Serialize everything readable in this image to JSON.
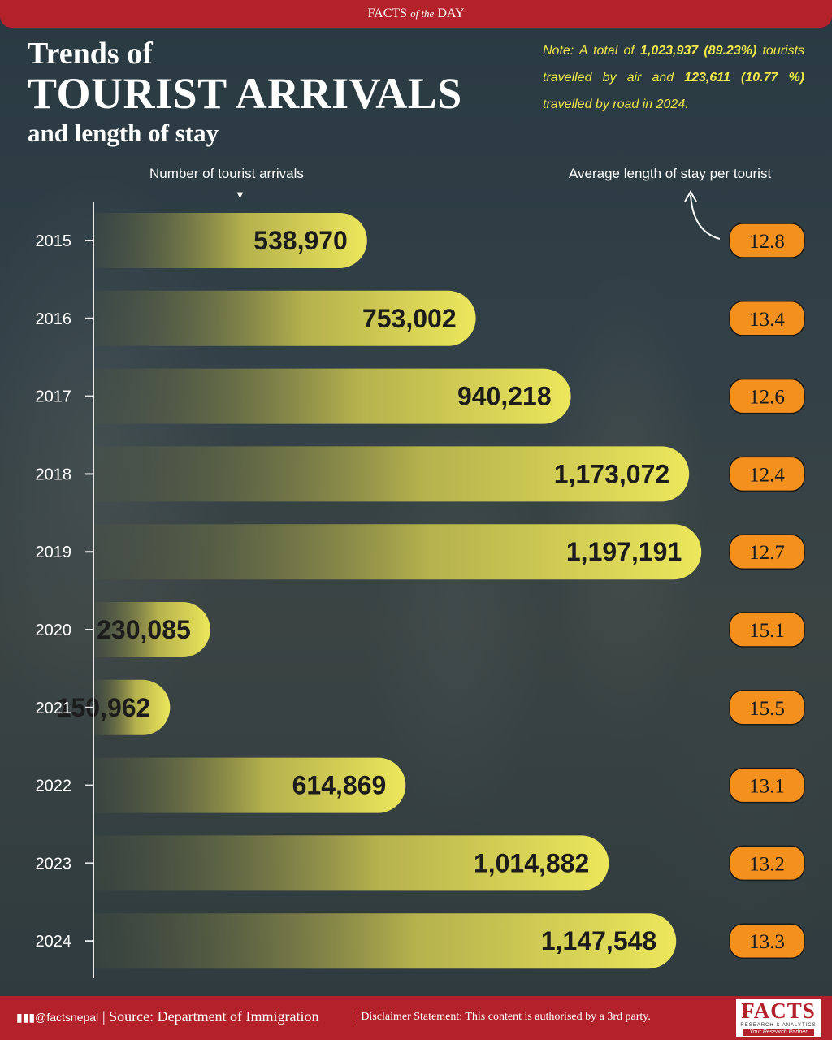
{
  "header": {
    "label_main": "FACTS",
    "label_of_the": "of the",
    "label_day": "DAY"
  },
  "title": {
    "line1": "Trends of",
    "line2": "TOURIST ARRIVALS",
    "line3": "and length of stay"
  },
  "note": {
    "prefix": "Note: A total of ",
    "air_count": "1,023,937 (89.23%)",
    "middle": " tourists travelled by air and ",
    "road_count": "123,611 (10.77 %)",
    "suffix": " travelled by road in 2024."
  },
  "chart_data": {
    "type": "bar",
    "orientation": "horizontal",
    "categories": [
      "2015",
      "2016",
      "2017",
      "2018",
      "2019",
      "2020",
      "2021",
      "2022",
      "2023",
      "2024"
    ],
    "series": [
      {
        "name": "Number of tourist arrivals",
        "values": [
          538970,
          753002,
          940218,
          1173072,
          1197191,
          230085,
          150962,
          614869,
          1014882,
          1147548
        ],
        "labels": [
          "538,970",
          "753,002",
          "940,218",
          "1,173,072",
          "1,197,191",
          "230,085",
          "150,962",
          "614,869",
          "1,014,882",
          "1,147,548"
        ]
      },
      {
        "name": "Average length of stay per tourist",
        "values": [
          12.8,
          13.4,
          12.6,
          12.4,
          12.7,
          15.1,
          15.5,
          13.1,
          13.2,
          13.3
        ],
        "labels": [
          "12.8",
          "13.4",
          "12.6",
          "12.4",
          "12.7",
          "15.1",
          "15.5",
          "13.1",
          "13.2",
          "13.3"
        ]
      }
    ],
    "legend_placement": "top",
    "grid": false,
    "colors": {
      "bar": "#e8e35a",
      "bar_dark": "#4c5440",
      "badge": "#f4901e",
      "badge_border": "#1a1a1a"
    }
  },
  "footer": {
    "handle": "@factsnepal",
    "source": "Source: Department of Immigration",
    "disclaimer": "Disclaimer Statement: This content is authorised by a 3rd party.",
    "logo_text": "FACTS",
    "logo_sub": "RESEARCH & ANALYTICS",
    "logo_tagline": "Your Research Partner"
  }
}
